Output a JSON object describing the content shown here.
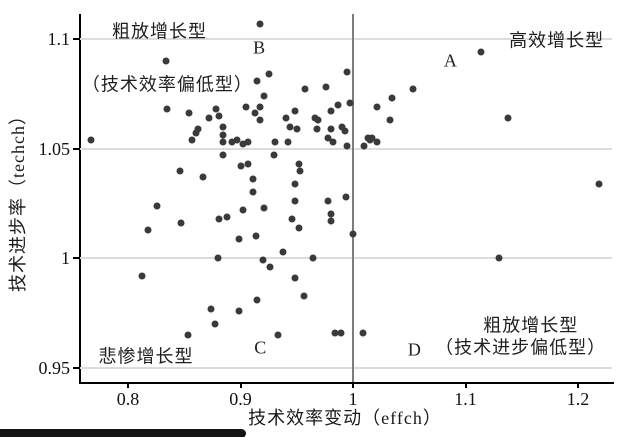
{
  "chart_data": {
    "type": "scatter",
    "title": "",
    "xlabel": "技术效率变动（effch）",
    "ylabel": "技术进步率（techch）",
    "xlim": [
      0.757,
      1.246
    ],
    "ylim": [
      0.944,
      1.111
    ],
    "grid": "horizontal",
    "legend": "none",
    "vline_x": 1.0,
    "xticks": {
      "values": [
        0.8,
        0.9,
        1.0,
        1.1,
        1.2
      ],
      "labels": [
        "0.8",
        "0.9",
        "1",
        "1.1",
        "1.2"
      ]
    },
    "yticks": {
      "values": [
        0.95,
        1.0,
        1.05,
        1.1
      ],
      "labels": [
        "0.95",
        "1",
        "1.05",
        "1.1"
      ]
    },
    "point_color": "#3a3a3a",
    "annotations": [
      {
        "id": "quadrant-b-title",
        "text": "粗放增长型",
        "x": 0.828,
        "y": 1.103
      },
      {
        "id": "quadrant-b-subtitle",
        "text": "（技术效率偏低型）",
        "x": 0.835,
        "y": 1.079
      },
      {
        "id": "label-b",
        "text": "B",
        "x": 0.917,
        "y": 1.096
      },
      {
        "id": "quadrant-a-title",
        "text": "高效增长型",
        "x": 1.181,
        "y": 1.099
      },
      {
        "id": "label-a",
        "text": "A",
        "x": 1.087,
        "y": 1.09
      },
      {
        "id": "quadrant-c-title",
        "text": "悲惨增长型",
        "x": 0.816,
        "y": 0.955
      },
      {
        "id": "label-c",
        "text": "C",
        "x": 0.918,
        "y": 0.959
      },
      {
        "id": "label-d",
        "text": "D",
        "x": 1.055,
        "y": 0.958
      },
      {
        "id": "quadrant-d-title",
        "text": "粗放增长型",
        "x": 1.158,
        "y": 0.969
      },
      {
        "id": "quadrant-d-subtitle",
        "text": "（技术进步偏低型）",
        "x": 1.149,
        "y": 0.959
      }
    ],
    "points": [
      [
        0.917,
        1.107
      ],
      [
        0.834,
        1.09
      ],
      [
        0.915,
        1.081
      ],
      [
        0.925,
        1.084
      ],
      [
        0.995,
        1.085
      ],
      [
        0.957,
        1.077
      ],
      [
        0.976,
        1.078
      ],
      [
        1.053,
        1.077
      ],
      [
        1.035,
        1.073
      ],
      [
        0.997,
        1.071
      ],
      [
        1.021,
        1.069
      ],
      [
        0.987,
        1.07
      ],
      [
        0.921,
        1.074
      ],
      [
        0.917,
        1.069
      ],
      [
        0.835,
        1.068
      ],
      [
        0.854,
        1.066
      ],
      [
        0.878,
        1.068
      ],
      [
        0.872,
        1.064
      ],
      [
        0.881,
        1.065
      ],
      [
        0.884,
        1.06
      ],
      [
        0.86,
        1.057
      ],
      [
        0.884,
        1.056
      ],
      [
        0.905,
        1.069
      ],
      [
        0.913,
        1.066
      ],
      [
        0.94,
        1.064
      ],
      [
        0.948,
        1.067
      ],
      [
        0.944,
        1.06
      ],
      [
        0.95,
        1.059
      ],
      [
        0.966,
        1.064
      ],
      [
        0.969,
        1.063
      ],
      [
        0.98,
        1.067
      ],
      [
        0.968,
        1.059
      ],
      [
        0.98,
        1.059
      ],
      [
        0.99,
        1.06
      ],
      [
        0.993,
        1.058
      ],
      [
        1.033,
        1.063
      ],
      [
        0.917,
        1.063
      ],
      [
        1.013,
        1.055
      ],
      [
        1.017,
        1.055
      ],
      [
        0.978,
        1.055
      ],
      [
        1.114,
        1.094
      ],
      [
        1.138,
        1.064
      ],
      [
        0.767,
        1.054
      ],
      [
        0.862,
        1.059
      ],
      [
        0.857,
        1.054
      ],
      [
        0.884,
        1.053
      ],
      [
        0.892,
        1.053
      ],
      [
        0.902,
        1.052
      ],
      [
        0.897,
        1.054
      ],
      [
        0.907,
        1.053
      ],
      [
        0.931,
        1.053
      ],
      [
        0.942,
        1.053
      ],
      [
        0.982,
        1.053
      ],
      [
        0.995,
        1.051
      ],
      [
        1.01,
        1.051
      ],
      [
        1.015,
        1.054
      ],
      [
        1.021,
        1.053
      ],
      [
        0.884,
        1.047
      ],
      [
        0.846,
        1.04
      ],
      [
        0.867,
        1.037
      ],
      [
        0.9,
        1.042
      ],
      [
        0.907,
        1.043
      ],
      [
        0.911,
        1.036
      ],
      [
        0.911,
        1.03
      ],
      [
        0.826,
        1.024
      ],
      [
        0.902,
        1.022
      ],
      [
        0.881,
        1.018
      ],
      [
        0.888,
        1.019
      ],
      [
        0.847,
        1.016
      ],
      [
        0.818,
        1.013
      ],
      [
        0.899,
        1.009
      ],
      [
        0.914,
        1.01
      ],
      [
        0.88,
        1.0
      ],
      [
        0.92,
        0.999
      ],
      [
        0.93,
        1.047
      ],
      [
        0.952,
        1.043
      ],
      [
        0.953,
        1.04
      ],
      [
        0.948,
        1.034
      ],
      [
        0.948,
        1.026
      ],
      [
        0.921,
        1.023
      ],
      [
        0.994,
        1.028
      ],
      [
        0.978,
        1.026
      ],
      [
        0.98,
        1.02
      ],
      [
        0.98,
        1.017
      ],
      [
        0.946,
        1.018
      ],
      [
        0.952,
        1.014
      ],
      [
        1.0,
        1.011
      ],
      [
        0.938,
        1.003
      ],
      [
        0.964,
        1.0
      ],
      [
        1.219,
        1.034
      ],
      [
        1.13,
        1.0
      ],
      [
        0.812,
        0.992
      ],
      [
        0.874,
        0.977
      ],
      [
        0.899,
        0.976
      ],
      [
        0.915,
        0.981
      ],
      [
        0.877,
        0.97
      ],
      [
        0.853,
        0.965
      ],
      [
        0.926,
        0.996
      ],
      [
        0.948,
        0.991
      ],
      [
        0.956,
        0.983
      ],
      [
        0.933,
        0.965
      ],
      [
        0.984,
        0.966
      ],
      [
        0.989,
        0.966
      ],
      [
        1.009,
        0.966
      ]
    ]
  },
  "colors": {
    "point": "#3a3a3a",
    "axis": "#000000",
    "grid": "#dcdcdc",
    "vline": "#7d7d7d",
    "bottom_bar": "#141414",
    "background": "#ffffff"
  }
}
